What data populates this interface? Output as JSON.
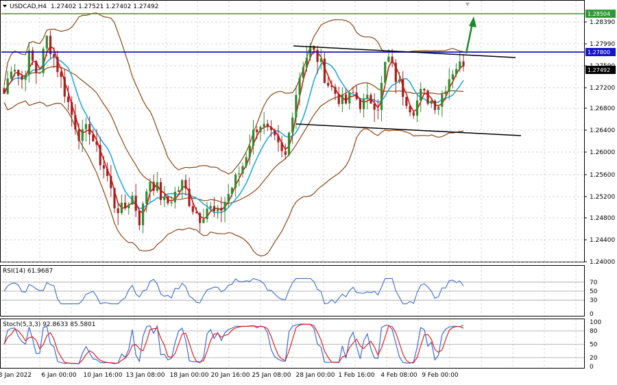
{
  "header": {
    "symbol_label": "USDCAD,H4",
    "ohlc": "1.27402 1.27521 1.27402 1.27492"
  },
  "price_axis": {
    "ticks": [
      "1.28390",
      "1.27990",
      "1.27590",
      "1.27200",
      "1.26800",
      "1.26400",
      "1.26000",
      "1.25600",
      "1.25200",
      "1.24800",
      "1.24400",
      "1.24000"
    ],
    "markers": [
      {
        "label": "1.28504",
        "color": "#2f9a35"
      },
      {
        "label": "1.27800",
        "color": "#1414c8"
      },
      {
        "label": "1.27492",
        "color": "#000000"
      }
    ]
  },
  "time_axis": {
    "labels": [
      "3 Jan 2022",
      "6 Jan 00:00",
      "10 Jan 16:00",
      "13 Jan 08:00",
      "18 Jan 00:00",
      "20 Jan 16:00",
      "25 Jan 08:00",
      "28 Jan 00:00",
      "1 Feb 16:00",
      "4 Feb 08:00",
      "9 Feb 00:00"
    ]
  },
  "rsi_panel": {
    "label": "RSI(14) 61.9687",
    "ticks": [
      "70",
      "50",
      "30",
      "0"
    ]
  },
  "stoch_panel": {
    "label": "Stoch(5,3,3) 92.8633 85.5801",
    "ticks": [
      "100",
      "80",
      "50",
      "20",
      "0"
    ]
  },
  "colors": {
    "grid": "#c8c8c8",
    "bullish_candle": "#2e8b2e",
    "bearish_candle": "#a52020",
    "bollinger": "#8b4513",
    "fast_ma": "#e01010",
    "slow_ma": "#20a8e0",
    "rsi_line": "#4a78c8",
    "stoch_main": "#3a6ad8",
    "stoch_signal": "#e02020",
    "resistance_line": "#1414c8",
    "target_line": "#2f9a35",
    "trend_lines": "#000000",
    "arrow": "#1a8a2a"
  },
  "chart_data": {
    "type": "candlestick",
    "symbol": "USDCAD",
    "timeframe": "H4",
    "ylim": [
      1.24,
      1.2866
    ],
    "horizontal_levels": [
      1.28504,
      1.278
    ],
    "close_path": [
      1.27,
      1.276,
      1.272,
      1.277,
      1.273,
      1.28,
      1.276,
      1.271,
      1.266,
      1.262,
      1.264,
      1.259,
      1.256,
      1.25,
      1.249,
      1.252,
      1.247,
      1.255,
      1.253,
      1.25,
      1.252,
      1.254,
      1.25,
      1.248,
      1.25,
      1.248,
      1.251,
      1.254,
      1.257,
      1.262,
      1.265,
      1.263,
      1.261,
      1.258,
      1.268,
      1.275,
      1.278,
      1.276,
      1.272,
      1.27,
      1.268,
      1.27,
      1.268,
      1.269,
      1.268,
      1.277,
      1.273,
      1.27,
      1.267,
      1.27,
      1.269,
      1.268,
      1.272,
      1.275,
      1.2749
    ],
    "rsi": {
      "period": 14,
      "last": 61.9687,
      "levels": [
        70,
        50,
        30
      ]
    },
    "stochastic": {
      "params": "5,3,3",
      "main_last": 92.8633,
      "signal_last": 85.5801,
      "levels": [
        80,
        50,
        20
      ]
    }
  }
}
